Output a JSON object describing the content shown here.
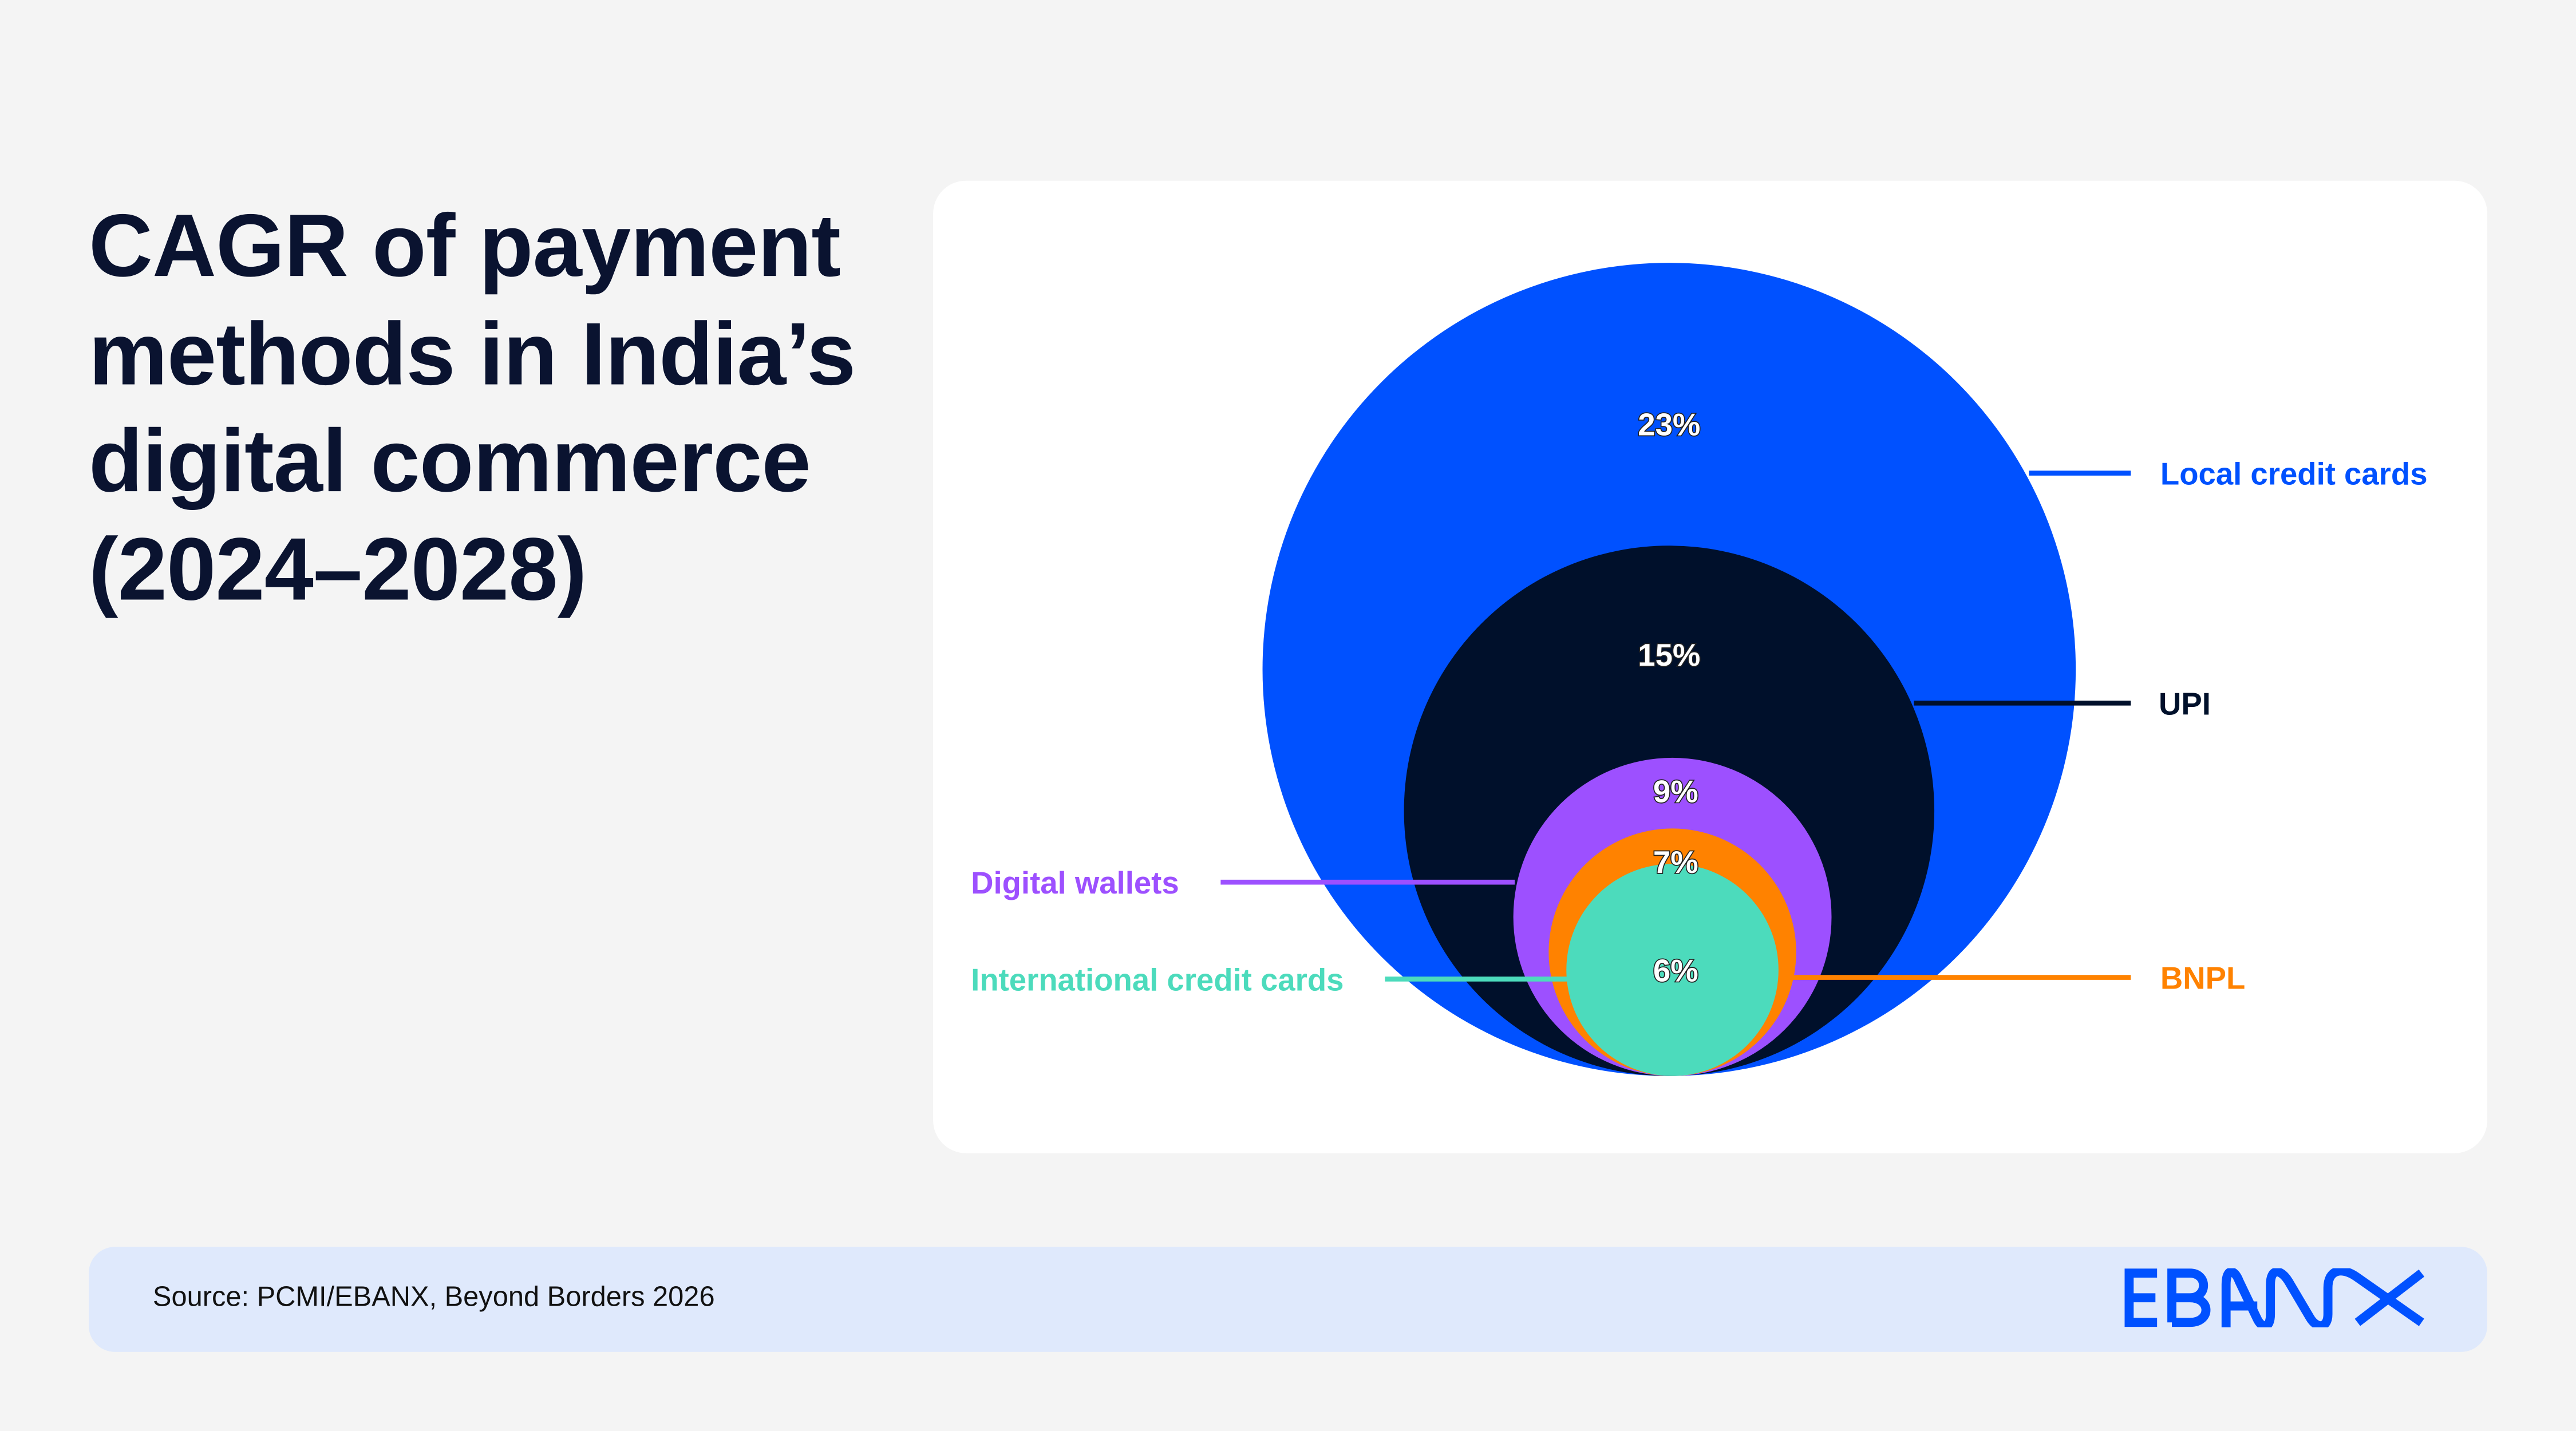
{
  "title": "CAGR of payment methods in India’s digital commerce (2024–2028)",
  "footer": {
    "source": "Source: PCMI/EBANX, Beyond Borders 2026",
    "logo_text": "EBANX"
  },
  "colors": {
    "background": "#f4f4f4",
    "title": "#0a1330",
    "footer_bg": "#dfe9fc",
    "brand": "#0051ff"
  },
  "chart_data": {
    "type": "nested-bubble",
    "title": "CAGR of payment methods in India’s digital commerce (2024–2028)",
    "categories": [
      "Local credit cards",
      "UPI",
      "Digital wallets",
      "BNPL",
      "International credit cards"
    ],
    "values": [
      23,
      15,
      9,
      7,
      6
    ],
    "value_labels": [
      "23%",
      "15%",
      "9%",
      "7%",
      "6%"
    ],
    "unit": "%",
    "colors": [
      "#0051ff",
      "#00102b",
      "#9d50ff",
      "#ff8200",
      "#4cdbbc"
    ],
    "label_colors": [
      "#0051ff",
      "#00102b",
      "#9d50ff",
      "#ff8200",
      "#4cdbbc"
    ],
    "label_sides": [
      "right",
      "right",
      "left",
      "right",
      "left"
    ]
  }
}
